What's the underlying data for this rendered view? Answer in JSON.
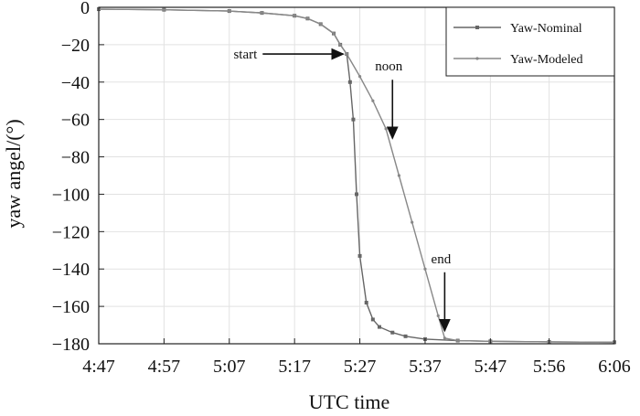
{
  "chart_data": {
    "type": "line",
    "title": "",
    "xlabel": "UTC time",
    "ylabel": "yaw angel/(°)",
    "xlim": [
      "4:47",
      "6:06"
    ],
    "ylim": [
      -180,
      0
    ],
    "x_ticks": [
      "4:47",
      "4:57",
      "5:07",
      "5:17",
      "5:27",
      "5:37",
      "5:47",
      "5:56",
      "6:06"
    ],
    "y_ticks": [
      0,
      -20,
      -40,
      -60,
      -80,
      -100,
      -120,
      -140,
      -160,
      -180
    ],
    "grid": true,
    "legend_position": "top-right",
    "series": [
      {
        "name": "Yaw-Nominal",
        "color": "#666666",
        "marker": "square",
        "points": [
          [
            "4:47",
            -1.0
          ],
          [
            "4:57",
            -1.3
          ],
          [
            "5:07",
            -2.0
          ],
          [
            "5:12",
            -3.0
          ],
          [
            "5:17",
            -4.5
          ],
          [
            "5:19",
            -6.0
          ],
          [
            "5:21",
            -9.0
          ],
          [
            "5:23",
            -14.0
          ],
          [
            "5:24",
            -20.0
          ],
          [
            "5:25",
            -25.0
          ],
          [
            "5:25.5",
            -40.0
          ],
          [
            "5:26",
            -60.0
          ],
          [
            "5:26.5",
            -100.0
          ],
          [
            "5:27",
            -133.0
          ],
          [
            "5:28",
            -158.0
          ],
          [
            "5:29",
            -167.0
          ],
          [
            "5:30",
            -171.0
          ],
          [
            "5:32",
            -174.0
          ],
          [
            "5:34",
            -176.0
          ],
          [
            "5:37",
            -177.5
          ],
          [
            "5:42",
            -178.3
          ],
          [
            "5:47",
            -178.7
          ],
          [
            "5:56",
            -179.0
          ],
          [
            "6:06",
            -179.2
          ]
        ]
      },
      {
        "name": "Yaw-Modeled",
        "color": "#888888",
        "marker": "dot",
        "points": [
          [
            "4:47",
            -1.0
          ],
          [
            "4:57",
            -1.3
          ],
          [
            "5:07",
            -2.0
          ],
          [
            "5:12",
            -3.0
          ],
          [
            "5:17",
            -4.5
          ],
          [
            "5:19",
            -6.0
          ],
          [
            "5:21",
            -9.0
          ],
          [
            "5:23",
            -14.0
          ],
          [
            "5:24",
            -20.0
          ],
          [
            "5:25",
            -25.0
          ],
          [
            "5:27",
            -37.0
          ],
          [
            "5:29",
            -50.0
          ],
          [
            "5:31",
            -65.0
          ],
          [
            "5:33",
            -90.0
          ],
          [
            "5:35",
            -115.0
          ],
          [
            "5:37",
            -140.0
          ],
          [
            "5:39",
            -165.0
          ],
          [
            "5:40",
            -177.0
          ],
          [
            "5:42",
            -178.3
          ],
          [
            "5:47",
            -178.7
          ],
          [
            "5:56",
            -179.0
          ],
          [
            "6:06",
            -179.2
          ]
        ]
      }
    ],
    "annotations": [
      {
        "text": "start",
        "x": "5:25",
        "y": -25,
        "direction": "right"
      },
      {
        "text": "noon",
        "x": "5:32",
        "y": -72,
        "direction": "down"
      },
      {
        "text": "end",
        "x": "5:40",
        "y": -175,
        "direction": "down"
      }
    ]
  }
}
